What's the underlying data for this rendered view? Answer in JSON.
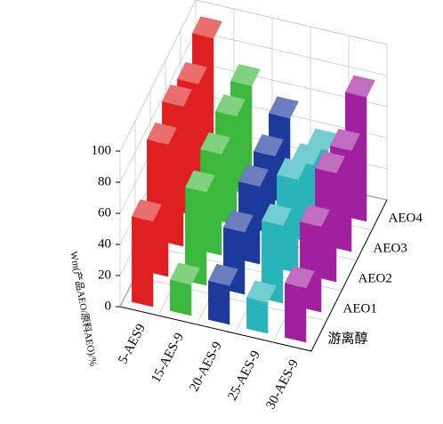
{
  "chart_data": {
    "type": "bar3d",
    "z_label": "Wm(产品AEO/原料AEO)/%",
    "categories": [
      "5-AES9",
      "15-AES-9",
      "20-AES-9",
      "25-AES-9",
      "30-AES-9"
    ],
    "depth_categories": [
      "游离醇",
      "AEO1",
      "AEO2",
      "AEO3",
      "AEO4"
    ],
    "series": [
      {
        "name": "5-AES9",
        "color": "#e02020",
        "values": [
          55,
          85,
          90,
          85,
          95
        ]
      },
      {
        "name": "15-AES-9",
        "color": "#3cb83c",
        "values": [
          20,
          60,
          65,
          70,
          70
        ]
      },
      {
        "name": "20-AES-9",
        "color": "#1c3a9c",
        "values": [
          25,
          40,
          50,
          50,
          55
        ]
      },
      {
        "name": "25-AES-9",
        "color": "#28b4b8",
        "values": [
          20,
          50,
          60,
          50,
          40
        ]
      },
      {
        "name": "30-AES-9",
        "color": "#a020a0",
        "values": [
          35,
          55,
          70,
          65,
          80
        ]
      }
    ],
    "zlim": [
      0,
      100
    ],
    "zticks": [
      0,
      20,
      40,
      60,
      80,
      100
    ],
    "grid": true
  }
}
